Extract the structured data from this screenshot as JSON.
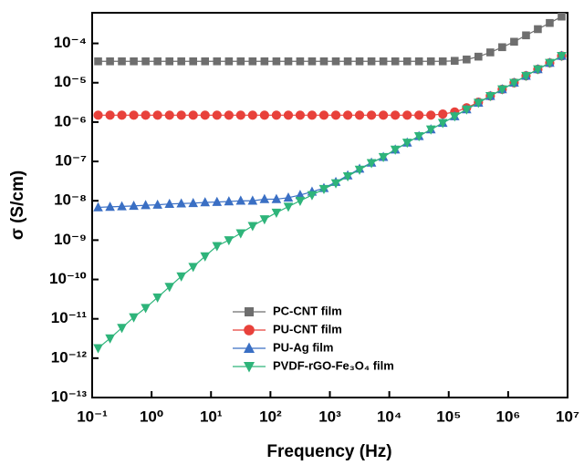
{
  "chart_data": {
    "type": "scatter-line",
    "x_label": "Frequency (Hz)",
    "y_label": "σ (S/cm)",
    "log_x": true,
    "log_y": true,
    "legend": "lower center",
    "xlim": [
      0.1,
      10000000
    ],
    "ylim": [
      1e-13,
      0.0006
    ],
    "xticks": [
      {
        "value": 0.1,
        "label": "10⁻¹"
      },
      {
        "value": 1,
        "label": "10⁰"
      },
      {
        "value": 10,
        "label": "10¹"
      },
      {
        "value": 100,
        "label": "10²"
      },
      {
        "value": 1000,
        "label": "10³"
      },
      {
        "value": 10000,
        "label": "10⁴"
      },
      {
        "value": 100000,
        "label": "10⁵"
      },
      {
        "value": 1000000,
        "label": "10⁶"
      },
      {
        "value": 10000000,
        "label": "10⁷"
      }
    ],
    "yticks": [
      {
        "value": 1e-13,
        "label": "10⁻¹³"
      },
      {
        "value": 1e-12,
        "label": "10⁻¹²"
      },
      {
        "value": 1e-11,
        "label": "10⁻¹¹"
      },
      {
        "value": 1e-10,
        "label": "10⁻¹⁰"
      },
      {
        "value": 1e-09,
        "label": "10⁻⁹"
      },
      {
        "value": 1e-08,
        "label": "10⁻⁸"
      },
      {
        "value": 1e-07,
        "label": "10⁻⁷"
      },
      {
        "value": 1e-06,
        "label": "10⁻⁶"
      },
      {
        "value": 1e-05,
        "label": "10⁻⁵"
      },
      {
        "value": 0.0001,
        "label": "10⁻⁴"
      }
    ],
    "x": [
      0.126,
      0.2,
      0.316,
      0.501,
      0.794,
      1.26,
      2,
      3.16,
      5.01,
      7.94,
      12.6,
      20,
      31.6,
      50.1,
      79.4,
      126,
      200,
      316,
      501,
      794,
      1260,
      2000,
      3160,
      5010,
      7940,
      12600,
      20000,
      31600,
      50100,
      79400,
      126000,
      200000,
      316000,
      501000,
      794000,
      1260000,
      2000000,
      3160000,
      5010000,
      7940000
    ],
    "series": [
      {
        "name": "PC-CNT film",
        "color": "#6e6e6e",
        "marker": "square",
        "values": [
          3.5e-05,
          3.5e-05,
          3.5e-05,
          3.5e-05,
          3.5e-05,
          3.5e-05,
          3.5e-05,
          3.5e-05,
          3.5e-05,
          3.5e-05,
          3.5e-05,
          3.5e-05,
          3.5e-05,
          3.5e-05,
          3.5e-05,
          3.5e-05,
          3.5e-05,
          3.5e-05,
          3.5e-05,
          3.5e-05,
          3.5e-05,
          3.5e-05,
          3.5e-05,
          3.5e-05,
          3.5e-05,
          3.5e-05,
          3.5e-05,
          3.5e-05,
          3.5e-05,
          3.5e-05,
          3.6e-05,
          3.9e-05,
          4.6e-05,
          5.9e-05,
          8e-05,
          0.00011,
          0.00016,
          0.00023,
          0.00033,
          0.00048
        ]
      },
      {
        "name": "PU-CNT film",
        "color": "#e8413b",
        "marker": "circle",
        "values": [
          1.5e-06,
          1.5e-06,
          1.5e-06,
          1.5e-06,
          1.5e-06,
          1.5e-06,
          1.5e-06,
          1.5e-06,
          1.5e-06,
          1.5e-06,
          1.5e-06,
          1.5e-06,
          1.5e-06,
          1.5e-06,
          1.5e-06,
          1.5e-06,
          1.5e-06,
          1.5e-06,
          1.5e-06,
          1.5e-06,
          1.5e-06,
          1.5e-06,
          1.5e-06,
          1.5e-06,
          1.5e-06,
          1.5e-06,
          1.5e-06,
          1.5e-06,
          1.5e-06,
          1.6e-06,
          1.8e-06,
          2.3e-06,
          3.2e-06,
          4.6e-06,
          6.8e-06,
          1e-05,
          1.5e-05,
          2.2e-05,
          3.2e-05,
          4.8e-05
        ]
      },
      {
        "name": "PU-Ag film",
        "color": "#3a6fc4",
        "marker": "triangle-up",
        "values": [
          6.8e-09,
          7e-09,
          7.2e-09,
          7.4e-09,
          7.7e-09,
          7.9e-09,
          8.3e-09,
          8.5e-09,
          8.7e-09,
          9.1e-09,
          9.3e-09,
          9.6e-09,
          1e-08,
          1e-08,
          1.1e-08,
          1.1e-08,
          1.2e-08,
          1.4e-08,
          1.7e-08,
          2.1e-08,
          3e-08,
          4.4e-08,
          6.5e-08,
          9.3e-08,
          1.3e-07,
          2e-07,
          3e-07,
          4.4e-07,
          6.5e-07,
          9.5e-07,
          1.4e-06,
          2.1e-06,
          3.1e-06,
          4.6e-06,
          6.8e-06,
          1e-05,
          1.5e-05,
          2.2e-05,
          3.2e-05,
          4.8e-05
        ]
      },
      {
        "name": "PVDF-rGO-Fe₃O₄ film",
        "color": "#2eb47a",
        "marker": "triangle-down",
        "values": [
          1.8e-12,
          3.2e-12,
          5.9e-12,
          1.1e-11,
          1.9e-11,
          3.5e-11,
          6.5e-11,
          1.2e-10,
          2.1e-10,
          3.9e-10,
          7.1e-10,
          1e-09,
          1.5e-09,
          2.3e-09,
          3.4e-09,
          5e-09,
          7.1e-09,
          1e-08,
          1.4e-08,
          2e-08,
          2.8e-08,
          4.2e-08,
          6.2e-08,
          9.1e-08,
          1.3e-07,
          2e-07,
          3e-07,
          4.4e-07,
          6.5e-07,
          9.5e-07,
          1.4e-06,
          2.1e-06,
          3.1e-06,
          4.6e-06,
          6.8e-06,
          1e-05,
          1.5e-05,
          2.2e-05,
          3.2e-05,
          4.8e-05
        ]
      }
    ]
  }
}
